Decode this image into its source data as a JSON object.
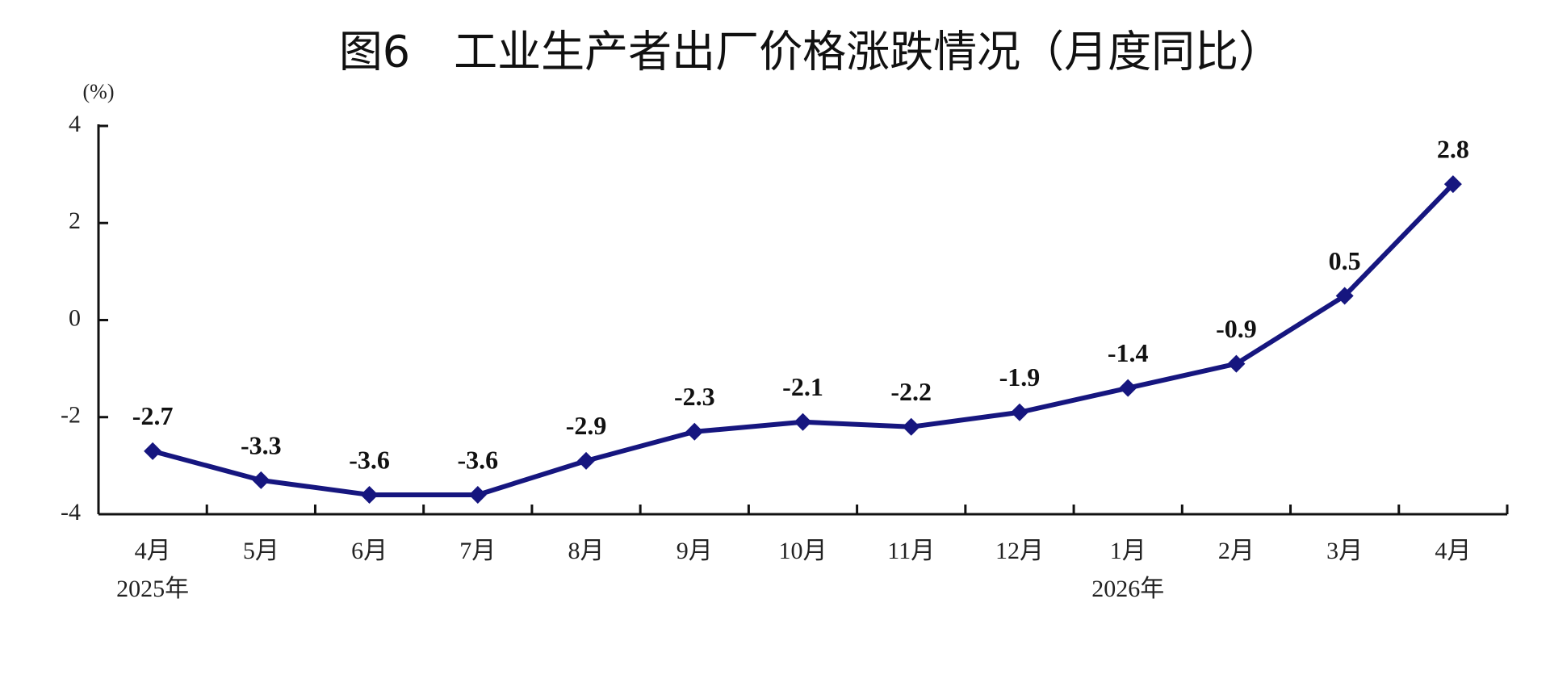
{
  "chart_data": {
    "type": "line",
    "title": "图6　工业生产者出厂价格涨跌情况（月度同比）",
    "y_unit_label": "(%)",
    "categories": [
      "4月",
      "5月",
      "6月",
      "7月",
      "8月",
      "9月",
      "10月",
      "11月",
      "12月",
      "1月",
      "2月",
      "3月",
      "4月"
    ],
    "year_labels": [
      "2025年",
      null,
      null,
      null,
      null,
      null,
      null,
      null,
      null,
      "2026年",
      null,
      null,
      null
    ],
    "series": [
      {
        "name": "同比",
        "color": "#16167f",
        "values": [
          -2.7,
          -3.3,
          -3.6,
          -3.6,
          -2.9,
          -2.3,
          -2.1,
          -2.2,
          -1.9,
          -1.4,
          -0.9,
          0.5,
          2.8
        ]
      }
    ],
    "ylim": [
      -4,
      4
    ],
    "yticks": [
      -4,
      -2,
      0,
      2,
      4
    ],
    "grid": false
  }
}
